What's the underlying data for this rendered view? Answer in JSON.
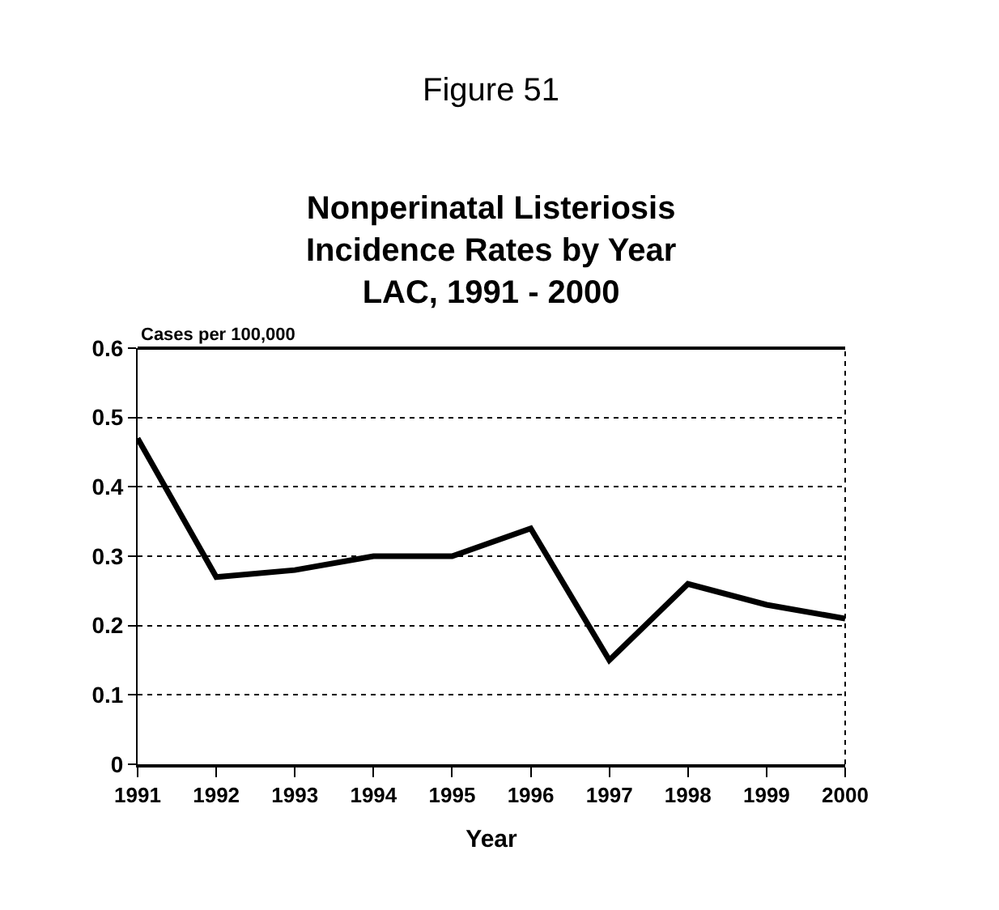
{
  "chart_data": {
    "type": "line",
    "title": "Figure 51",
    "subtitle": "Nonperinatal Listeriosis\nIncidence Rates by Year\nLAC, 1991 - 2000",
    "xlabel": "Year",
    "ylabel": "Cases per 100,000",
    "x": [
      1991,
      1992,
      1993,
      1994,
      1995,
      1996,
      1997,
      1998,
      1999,
      2000
    ],
    "series": [
      {
        "color": "#000000",
        "values": [
          0.47,
          0.27,
          0.28,
          0.3,
          0.3,
          0.34,
          0.15,
          0.26,
          0.23,
          0.21
        ]
      }
    ],
    "xlim": [
      1991,
      2000
    ],
    "xticks": [
      1991,
      1992,
      1993,
      1994,
      1995,
      1996,
      1997,
      1998,
      1999,
      2000
    ],
    "ylim": [
      0,
      0.6
    ],
    "yticks": [
      0,
      0.1,
      0.2,
      0.3,
      0.4,
      0.5,
      0.6
    ],
    "grid": "y",
    "legend": false,
    "marker": "none",
    "line_style": "solid"
  }
}
